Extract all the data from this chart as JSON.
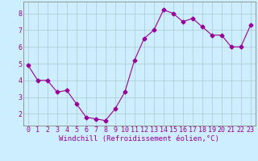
{
  "x": [
    0,
    1,
    2,
    3,
    4,
    5,
    6,
    7,
    8,
    9,
    10,
    11,
    12,
    13,
    14,
    15,
    16,
    17,
    18,
    19,
    20,
    21,
    22,
    23
  ],
  "y": [
    4.9,
    4.0,
    4.0,
    3.3,
    3.4,
    2.6,
    1.8,
    1.7,
    1.6,
    2.3,
    3.3,
    5.2,
    6.5,
    7.0,
    8.2,
    8.0,
    7.5,
    7.7,
    7.2,
    6.7,
    6.7,
    6.0,
    6.0,
    7.3
  ],
  "line_color": "#990099",
  "marker": "D",
  "marker_size": 2.5,
  "bg_color": "#cceeff",
  "grid_color": "#aacccc",
  "xlabel": "Windchill (Refroidissement éolien,°C)",
  "xlabel_color": "#990099",
  "xlabel_fontsize": 6.5,
  "tick_color": "#990099",
  "tick_fontsize": 6,
  "ylim": [
    1.3,
    8.7
  ],
  "yticks": [
    2,
    3,
    4,
    5,
    6,
    7,
    8
  ],
  "xlim": [
    -0.5,
    23.5
  ],
  "xticks": [
    0,
    1,
    2,
    3,
    4,
    5,
    6,
    7,
    8,
    9,
    10,
    11,
    12,
    13,
    14,
    15,
    16,
    17,
    18,
    19,
    20,
    21,
    22,
    23
  ],
  "spine_color": "#888888"
}
